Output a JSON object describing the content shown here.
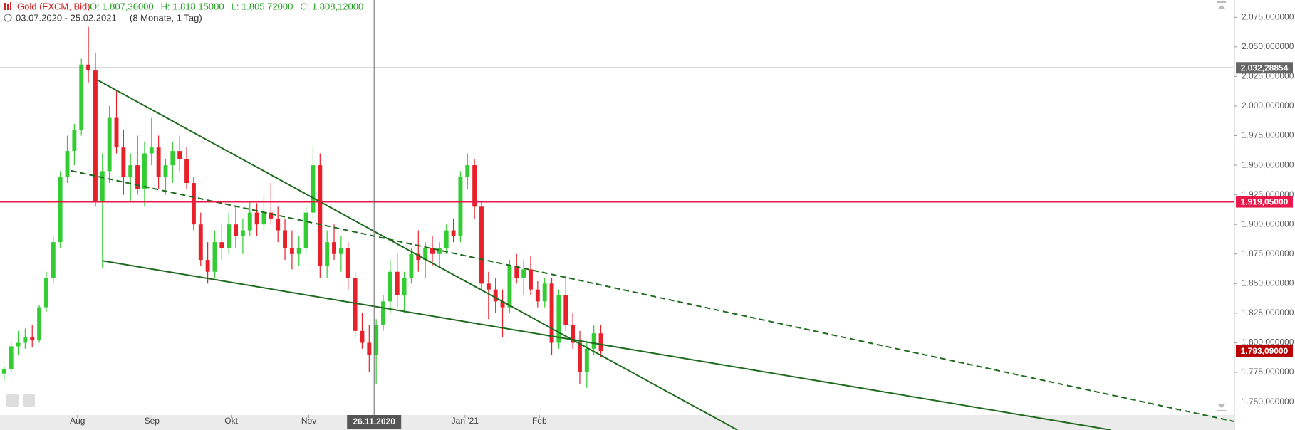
{
  "chart_data": {
    "type": "candlestick",
    "title": "Gold (FXCM, Bid)",
    "header_values": [
      "O: 1.807,36000",
      "H: 1.818,15000",
      "L: 1.805,72000",
      "C: 1.808,12000"
    ],
    "subtitle": "03.07.2020 - 25.02.2021",
    "period": "(8 Monate, 1 Tag)",
    "up_color": "#33cc33",
    "down_color": "#e8202a",
    "x": [
      0,
      2,
      4,
      6,
      8,
      10,
      12,
      14,
      16,
      18,
      20,
      22,
      24,
      26,
      28,
      30,
      32,
      34,
      36,
      38,
      40,
      42,
      44,
      46,
      48,
      50,
      52,
      54,
      56,
      58,
      60,
      62,
      64,
      66,
      68,
      70,
      72,
      74,
      76,
      78,
      80,
      82,
      84,
      86,
      88,
      90,
      92,
      94,
      96,
      98,
      100,
      102,
      104,
      106,
      108,
      110,
      112,
      114,
      116,
      118,
      120,
      122,
      124,
      126,
      128,
      130,
      132,
      134,
      136,
      138,
      140,
      142,
      144,
      146,
      148,
      150,
      152,
      154,
      156,
      158,
      160,
      162,
      164,
      166,
      168,
      170
    ],
    "ohlc": [
      [
        1774,
        1780,
        1768,
        1778
      ],
      [
        1778,
        1800,
        1775,
        1797
      ],
      [
        1797,
        1810,
        1790,
        1800
      ],
      [
        1800,
        1812,
        1795,
        1805
      ],
      [
        1805,
        1815,
        1796,
        1802
      ],
      [
        1802,
        1832,
        1800,
        1830
      ],
      [
        1830,
        1860,
        1826,
        1855
      ],
      [
        1855,
        1890,
        1850,
        1885
      ],
      [
        1885,
        1945,
        1880,
        1940
      ],
      [
        1940,
        1975,
        1935,
        1962
      ],
      [
        1962,
        1985,
        1950,
        1980
      ],
      [
        1980,
        2040,
        1975,
        2035
      ],
      [
        2035,
        2067,
        2020,
        2030
      ],
      [
        2030,
        2045,
        1915,
        1920
      ],
      [
        1920,
        1960,
        1863,
        1945
      ],
      [
        1945,
        2000,
        1935,
        1990
      ],
      [
        1990,
        2013,
        1960,
        1965
      ],
      [
        1965,
        1980,
        1925,
        1940
      ],
      [
        1940,
        1960,
        1920,
        1950
      ],
      [
        1950,
        1975,
        1925,
        1930
      ],
      [
        1930,
        1970,
        1915,
        1960
      ],
      [
        1960,
        1990,
        1950,
        1965
      ],
      [
        1965,
        1975,
        1930,
        1940
      ],
      [
        1940,
        1955,
        1925,
        1950
      ],
      [
        1950,
        1970,
        1935,
        1962
      ],
      [
        1962,
        1975,
        1945,
        1955
      ],
      [
        1955,
        1965,
        1930,
        1935
      ],
      [
        1935,
        1940,
        1895,
        1900
      ],
      [
        1900,
        1910,
        1865,
        1870
      ],
      [
        1870,
        1885,
        1850,
        1860
      ],
      [
        1860,
        1895,
        1855,
        1885
      ],
      [
        1885,
        1900,
        1870,
        1880
      ],
      [
        1880,
        1910,
        1875,
        1900
      ],
      [
        1900,
        1915,
        1880,
        1890
      ],
      [
        1890,
        1905,
        1875,
        1895
      ],
      [
        1895,
        1920,
        1890,
        1910
      ],
      [
        1910,
        1918,
        1890,
        1900
      ],
      [
        1900,
        1925,
        1895,
        1910
      ],
      [
        1910,
        1935,
        1900,
        1905
      ],
      [
        1905,
        1915,
        1885,
        1895
      ],
      [
        1895,
        1905,
        1870,
        1880
      ],
      [
        1880,
        1895,
        1862,
        1875
      ],
      [
        1875,
        1890,
        1865,
        1880
      ],
      [
        1880,
        1915,
        1875,
        1910
      ],
      [
        1910,
        1965,
        1905,
        1950
      ],
      [
        1950,
        1960,
        1855,
        1865
      ],
      [
        1865,
        1895,
        1855,
        1885
      ],
      [
        1885,
        1900,
        1870,
        1875
      ],
      [
        1875,
        1890,
        1860,
        1880
      ],
      [
        1880,
        1885,
        1845,
        1855
      ],
      [
        1855,
        1860,
        1805,
        1810
      ],
      [
        1810,
        1825,
        1795,
        1800
      ],
      [
        1800,
        1815,
        1775,
        1790
      ],
      [
        1790,
        1820,
        1765,
        1815
      ],
      [
        1815,
        1840,
        1810,
        1835
      ],
      [
        1835,
        1870,
        1825,
        1860
      ],
      [
        1860,
        1875,
        1830,
        1840
      ],
      [
        1840,
        1860,
        1825,
        1855
      ],
      [
        1855,
        1880,
        1850,
        1875
      ],
      [
        1875,
        1895,
        1860,
        1870
      ],
      [
        1870,
        1885,
        1855,
        1880
      ],
      [
        1880,
        1890,
        1865,
        1875
      ],
      [
        1875,
        1885,
        1865,
        1880
      ],
      [
        1880,
        1900,
        1875,
        1895
      ],
      [
        1895,
        1905,
        1885,
        1890
      ],
      [
        1890,
        1945,
        1885,
        1940
      ],
      [
        1940,
        1960,
        1930,
        1950
      ],
      [
        1950,
        1955,
        1905,
        1915
      ],
      [
        1915,
        1920,
        1845,
        1850
      ],
      [
        1850,
        1860,
        1820,
        1845
      ],
      [
        1845,
        1855,
        1825,
        1835
      ],
      [
        1835,
        1845,
        1805,
        1830
      ],
      [
        1830,
        1870,
        1825,
        1865
      ],
      [
        1865,
        1875,
        1850,
        1855
      ],
      [
        1855,
        1870,
        1840,
        1862
      ],
      [
        1862,
        1873,
        1840,
        1845
      ],
      [
        1845,
        1852,
        1830,
        1835
      ],
      [
        1835,
        1855,
        1830,
        1850
      ],
      [
        1850,
        1855,
        1790,
        1800
      ],
      [
        1800,
        1845,
        1795,
        1840
      ],
      [
        1840,
        1855,
        1810,
        1815
      ],
      [
        1815,
        1825,
        1795,
        1800
      ],
      [
        1800,
        1810,
        1765,
        1775
      ],
      [
        1775,
        1800,
        1762,
        1795
      ],
      [
        1795,
        1815,
        1790,
        1808
      ],
      [
        1808,
        1815,
        1788,
        1793
      ]
    ],
    "xlim": [
      -1.18,
      350.5
    ],
    "xticks": [
      {
        "value": 20.9,
        "label": "Aug"
      },
      {
        "value": 42.1,
        "label": "Sep"
      },
      {
        "value": 64.7,
        "label": "Okt"
      },
      {
        "value": 86.8,
        "label": "Nov"
      },
      {
        "value": 131.3,
        "label": "Jan '21"
      },
      {
        "value": 152.5,
        "label": "Feb"
      }
    ],
    "ylim": [
      1726.3,
      2089.6
    ],
    "yticks": [
      {
        "value": 1750,
        "label": "1.750,000000"
      },
      {
        "value": 1775,
        "label": "1.775,000000"
      },
      {
        "value": 1800,
        "label": "1.800,000000"
      },
      {
        "value": 1825,
        "label": "1.825,000000"
      },
      {
        "value": 1850,
        "label": "1.850,000000"
      },
      {
        "value": 1875,
        "label": "1.875,000000"
      },
      {
        "value": 1900,
        "label": "1.900,000000"
      },
      {
        "value": 1925,
        "label": "1.925,000000"
      },
      {
        "value": 1950,
        "label": "1.950,000000"
      },
      {
        "value": 1975,
        "label": "1.975,000000"
      },
      {
        "value": 2000,
        "label": "2.000,000000"
      },
      {
        "value": 2025,
        "label": "2.025,000000"
      },
      {
        "value": 2050,
        "label": "2.050,000000"
      },
      {
        "value": 2075,
        "label": "2.075,000000"
      }
    ],
    "hlines": [
      {
        "value": 2032.28854,
        "label": "2.032,28854",
        "color": "#666666"
      },
      {
        "value": 1919.05,
        "label": "1.919,05000",
        "color": "#e8194a"
      }
    ],
    "last_price": {
      "value": 1793.09,
      "label": "1.793,09000",
      "color": "#b80000"
    },
    "crosshair": {
      "x": 105.4,
      "label": "26.11.2020"
    },
    "trendlines": [
      {
        "x": [
          26.6,
          208.9
        ],
        "y": [
          2022.0,
          1726.3
        ],
        "dashed": false,
        "color": "#1e6b1e"
      },
      {
        "x": [
          28.0,
          315.3
        ],
        "y": [
          1869.3,
          1726.3
        ],
        "dashed": false,
        "color": "#1e6b1e"
      },
      {
        "x": [
          19.1,
          358.4
        ],
        "y": [
          1945.3,
          1728.4
        ],
        "dashed": true,
        "color": "#1e6b1e"
      }
    ]
  }
}
